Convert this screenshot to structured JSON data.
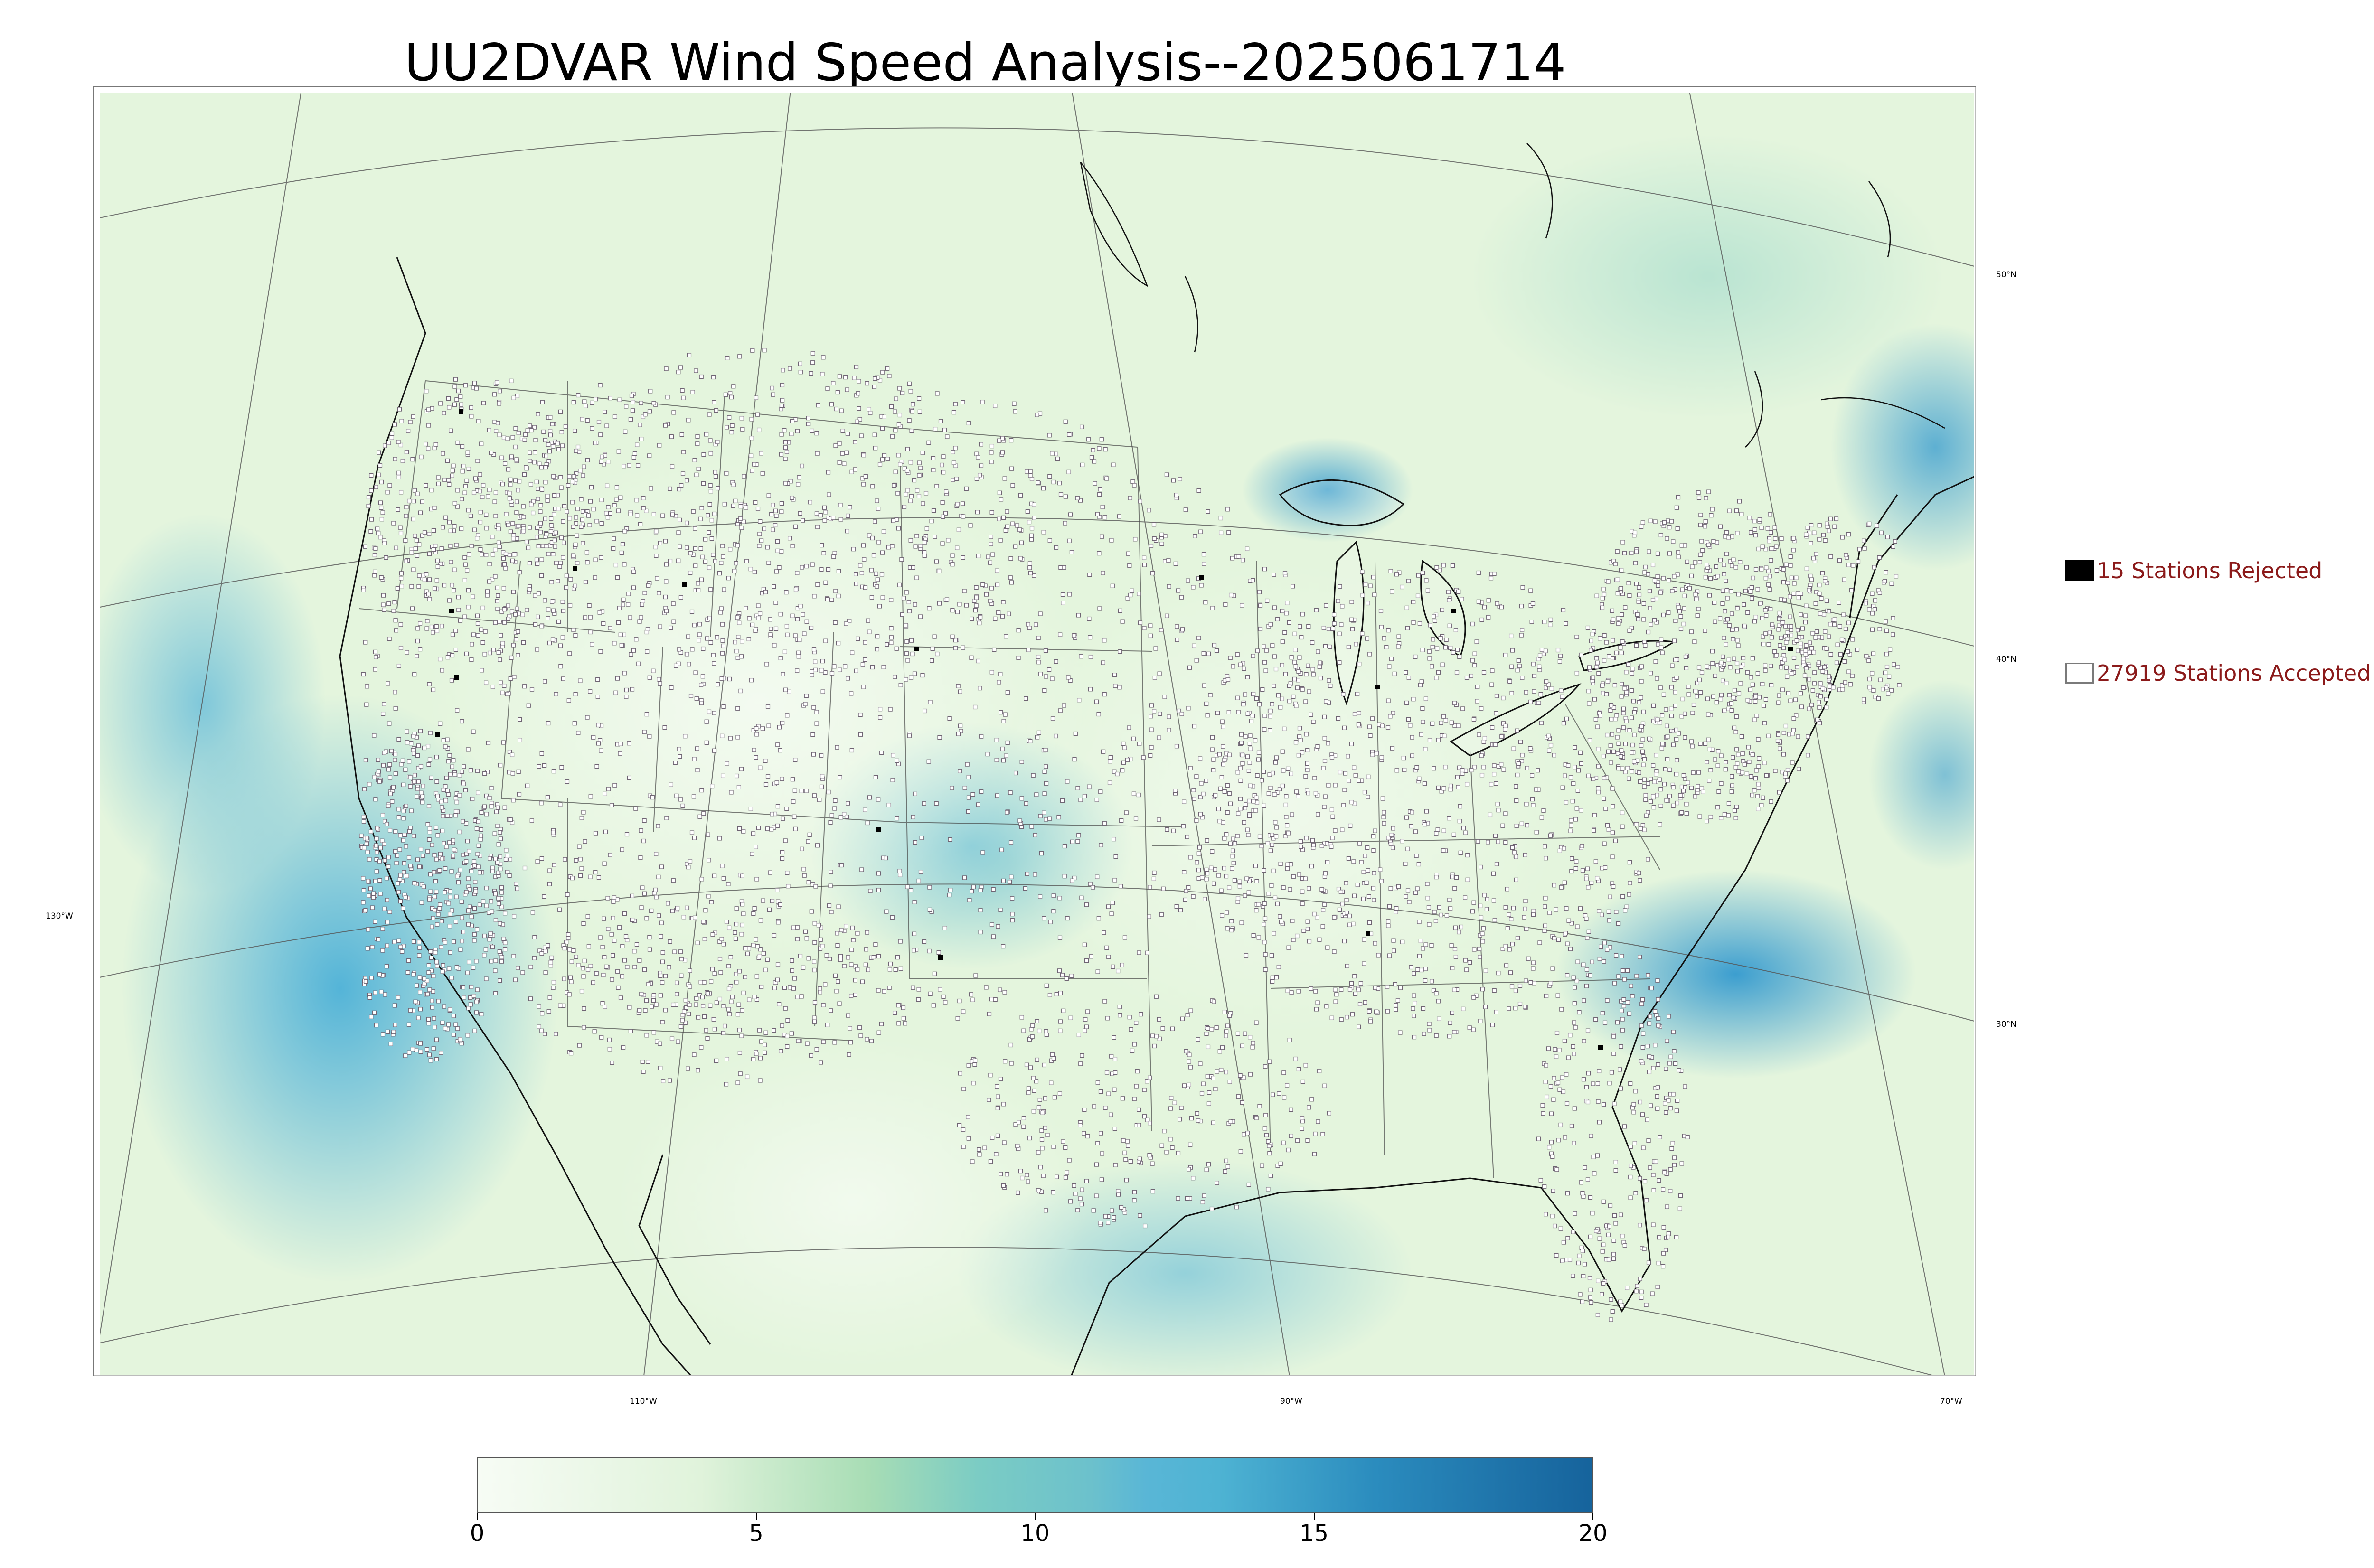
{
  "title": "UU2DVAR Wind Speed Analysis--2025061714",
  "map": {
    "background_color": "#e4f5dd",
    "ocean_color": "#c3e8c5",
    "strong_wind_color": "#4fb3d6",
    "coastline_color": "#000000",
    "station_marker_color": "#6f6473"
  },
  "latitude_labels": [
    "50°N",
    "40°N",
    "30°N"
  ],
  "longitude_labels": [
    "130°W",
    "110°W",
    "90°W",
    "70°W"
  ],
  "legend": {
    "rejected": {
      "label": "15 Stations Rejected",
      "count": 15,
      "swatch": "#000000"
    },
    "accepted": {
      "label": "27919 Stations Accepted",
      "count": 27919,
      "swatch": "#ffffff"
    }
  },
  "colorbar": {
    "min": 0,
    "max": 20,
    "ticks": [
      "0",
      "5",
      "10",
      "15",
      "20"
    ],
    "stops": [
      {
        "value": 0,
        "color": "#f7fcf5"
      },
      {
        "value": 4,
        "color": "#e0f3db"
      },
      {
        "value": 7,
        "color": "#a8ddb5"
      },
      {
        "value": 9,
        "color": "#7bccc4"
      },
      {
        "value": 11,
        "color": "#6cc1cc"
      },
      {
        "value": 12,
        "color": "#59b6d6"
      },
      {
        "value": 13.3,
        "color": "#4eb3d3"
      },
      {
        "value": 16.1,
        "color": "#2b8cbe"
      },
      {
        "value": 20,
        "color": "#16639c"
      }
    ]
  }
}
